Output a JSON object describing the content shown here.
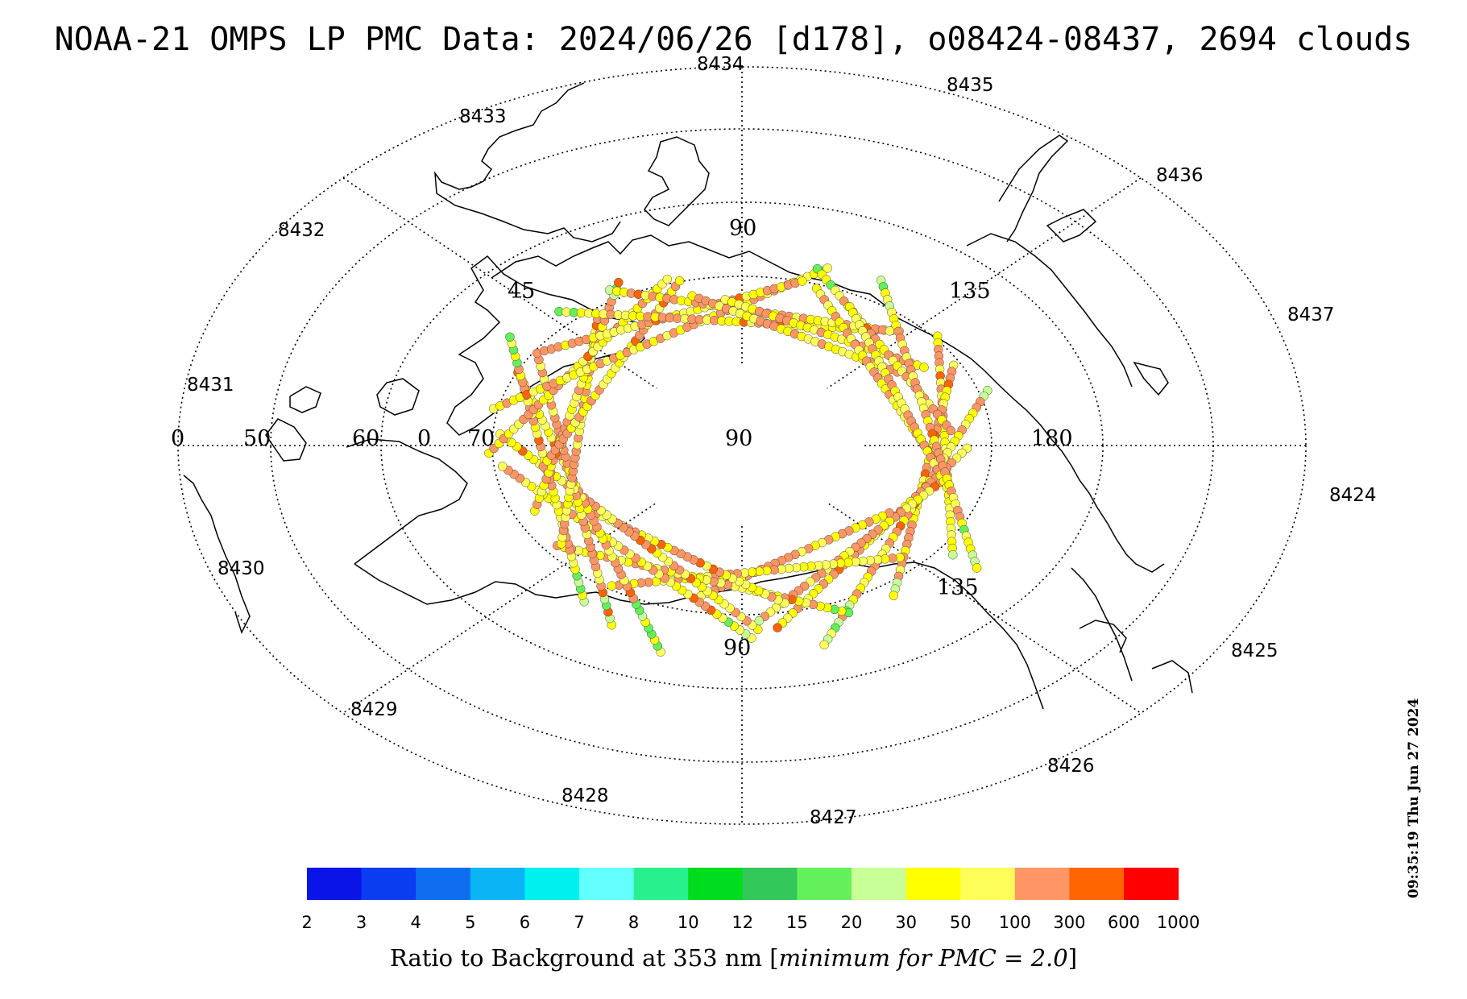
{
  "title": "NOAA-21 OMPS LP PMC Data: 2024/06/26 [d178], o08424-08437, 2694 clouds",
  "orbit_labels": [
    "8424",
    "8425",
    "8426",
    "8427",
    "8428",
    "8429",
    "8430",
    "8431",
    "8432",
    "8433",
    "8434",
    "8435",
    "8436",
    "8437"
  ],
  "grid_labels": {
    "lon_90_center": "90",
    "lon_180": "180",
    "lon_135_upper": "135",
    "lon_135_lower": "135",
    "lon_90_upper": "90",
    "lon_90_lower": "90",
    "lon_45": "45",
    "lon_0": "0",
    "lat_50": "50",
    "lat_60": "60",
    "lat_70": "70",
    "lat_0_outer": "0"
  },
  "colorbar": {
    "ticks": [
      "2",
      "3",
      "4",
      "5",
      "6",
      "7",
      "8",
      "10",
      "12",
      "15",
      "20",
      "30",
      "50",
      "100",
      "300",
      "600",
      "1000"
    ],
    "colors": [
      "#0a14e6",
      "#0a3cf0",
      "#0f6ef0",
      "#0ab4f5",
      "#00f0f0",
      "#64ffff",
      "#28f08c",
      "#00dc1e",
      "#32c85a",
      "#64f05a",
      "#c8ff96",
      "#ffff00",
      "#ffff5a",
      "#ff9664",
      "#ff6400",
      "#ff0000"
    ],
    "title_prefix": "Ratio to Background at 353 nm ",
    "title_italic": "minimum for PMC = 2.0",
    "title_open": "[",
    "title_close": "]"
  },
  "timestamp": "09:35:19 Thu Jun 27 2024"
}
